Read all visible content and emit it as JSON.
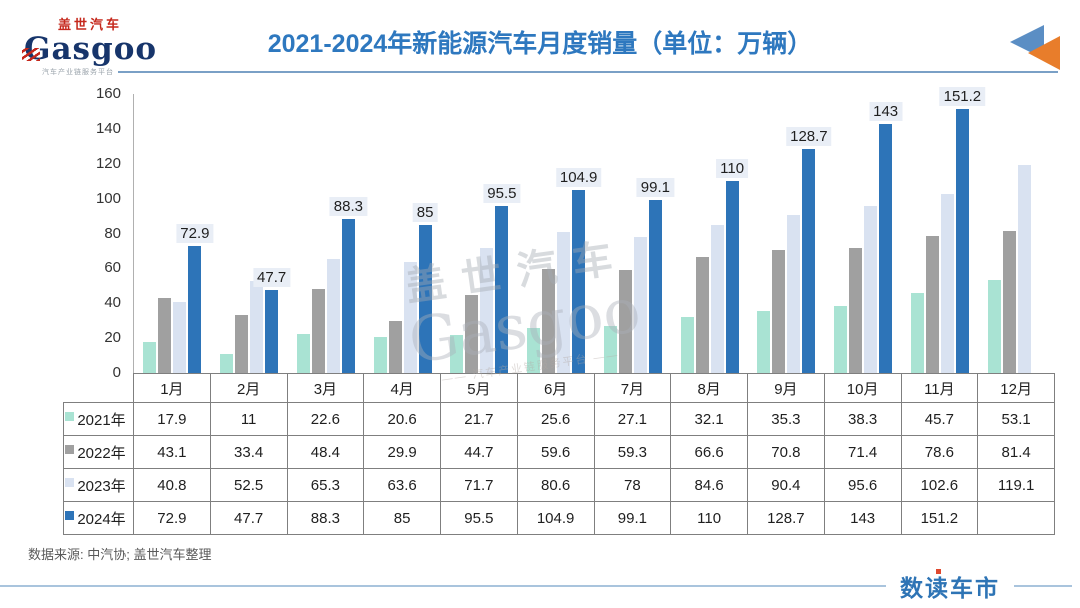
{
  "header": {
    "logo": {
      "chinese": "盖世汽车",
      "latin": "Gasgoo",
      "tagline": "汽车产业链服务平台"
    },
    "title": "2021-2024年新能源汽车月度销量（单位：万辆）",
    "icon": "rewind-triangles-icon"
  },
  "watermark": {
    "line1": "盖世汽车",
    "line2": "Gasgoo",
    "line3": "—— 汽车产业链服务平台 ——"
  },
  "chart_data": {
    "type": "bar",
    "title": "2021-2024年新能源汽车月度销量（单位：万辆）",
    "unit": "万辆",
    "categories": [
      "1月",
      "2月",
      "3月",
      "4月",
      "5月",
      "6月",
      "7月",
      "8月",
      "9月",
      "10月",
      "11月",
      "12月"
    ],
    "series": [
      {
        "name": "2021年",
        "color": "#a9e3d3",
        "values": [
          17.9,
          11,
          22.6,
          20.6,
          21.7,
          25.6,
          27.1,
          32.1,
          35.3,
          38.3,
          45.7,
          53.1
        ]
      },
      {
        "name": "2022年",
        "color": "#a0a0a0",
        "values": [
          43.1,
          33.4,
          48.4,
          29.9,
          44.7,
          59.6,
          59.3,
          66.6,
          70.8,
          71.4,
          78.6,
          81.4
        ]
      },
      {
        "name": "2023年",
        "color": "#d9e2f1",
        "values": [
          40.8,
          52.5,
          65.3,
          63.6,
          71.7,
          80.6,
          78,
          84.6,
          90.4,
          95.6,
          102.6,
          119.1
        ]
      },
      {
        "name": "2024年",
        "color": "#2d74b8",
        "values": [
          72.9,
          47.7,
          88.3,
          85,
          95.5,
          104.9,
          99.1,
          110,
          128.7,
          143,
          151.2,
          null
        ],
        "data_labels": true
      }
    ],
    "ylim": [
      0,
      160
    ],
    "yticks": [
      160,
      140,
      120,
      100,
      80,
      60,
      40,
      20,
      0
    ],
    "grid": false,
    "legend_position": "table-left"
  },
  "footer": {
    "source": "数据来源: 中汽协; 盖世汽车整理",
    "brand": "数读车市"
  },
  "colors": {
    "title_blue": "#2e78bf",
    "bar_2021": "#a9e3d3",
    "bar_2022": "#a0a0a0",
    "bar_2023": "#d9e2f1",
    "bar_2024": "#2d74b8",
    "label_bg": "#e9eef6",
    "table_border": "#7f7f7f",
    "rule_blue": "#a9c4dd",
    "brand_blue": "#2e74b5",
    "logo_red": "#c5281c",
    "logo_navy": "#17356b",
    "icon_blue": "#5b8ec4",
    "icon_orange": "#e87d2b"
  }
}
